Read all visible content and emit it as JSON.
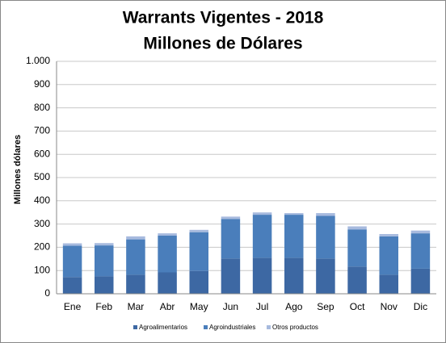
{
  "chart_data": {
    "type": "stacked-bar",
    "title": "Warrants Vigentes - 2018",
    "subtitle": "Millones de Dólares",
    "y_label": "Millones dólares",
    "categories": [
      "Ene",
      "Feb",
      "Mar",
      "Abr",
      "May",
      "Jun",
      "Jul",
      "Ago",
      "Sep",
      "Oct",
      "Nov",
      "Dic"
    ],
    "series": [
      {
        "name": "Agroalimentarios",
        "color": "#3d68a3",
        "values": [
          72,
          75,
          82,
          92,
          98,
          152,
          155,
          155,
          152,
          117,
          82,
          108
        ]
      },
      {
        "name": "Agroindustriales",
        "color": "#4a7ebb",
        "values": [
          135,
          133,
          152,
          158,
          167,
          170,
          185,
          185,
          183,
          160,
          165,
          152
        ]
      },
      {
        "name": "Otros productos",
        "color": "#a7bade",
        "values": [
          10,
          10,
          13,
          10,
          10,
          10,
          10,
          7,
          12,
          13,
          10,
          12
        ]
      }
    ],
    "ylim": [
      0,
      1000
    ],
    "yticks": [
      0,
      100,
      200,
      300,
      400,
      500,
      600,
      700,
      800,
      900,
      {
        "value": 1000,
        "label": "1.000"
      }
    ],
    "grid": true
  }
}
